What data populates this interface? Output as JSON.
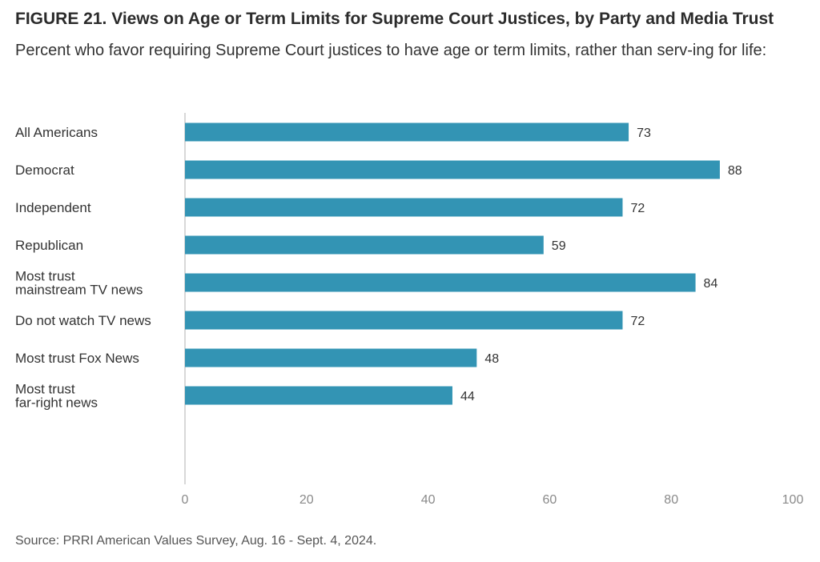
{
  "title": "FIGURE 21.  Views on Age or Term Limits for Supreme Court Justices, by Party and Media Trust",
  "subtitle": "Percent who favor requiring Supreme Court justices to have age or term limits, rather than serv-ing for life:",
  "source": "Source: PRRI American Values Survey, Aug. 16 - Sept. 4, 2024.",
  "colors": {
    "bar": "#3394b4",
    "axis": "#cccccc"
  },
  "chart_data": {
    "type": "bar",
    "orientation": "horizontal",
    "categories": [
      [
        "All Americans"
      ],
      [
        "Democrat"
      ],
      [
        "Independent"
      ],
      [
        "Republican"
      ],
      [
        "Most trust",
        "mainstream TV news"
      ],
      [
        "Do not watch TV news"
      ],
      [
        "Most trust Fox News"
      ],
      [
        "Most trust",
        "far-right news"
      ]
    ],
    "groups": [
      [
        0
      ],
      [
        1,
        2,
        3
      ],
      [
        4,
        5,
        6,
        7
      ]
    ],
    "values": [
      73,
      88,
      72,
      59,
      84,
      72,
      48,
      44
    ],
    "xlim": [
      0,
      100
    ],
    "xticks": [
      0,
      20,
      40,
      60,
      80,
      100
    ],
    "grid": false,
    "legend": "none"
  }
}
